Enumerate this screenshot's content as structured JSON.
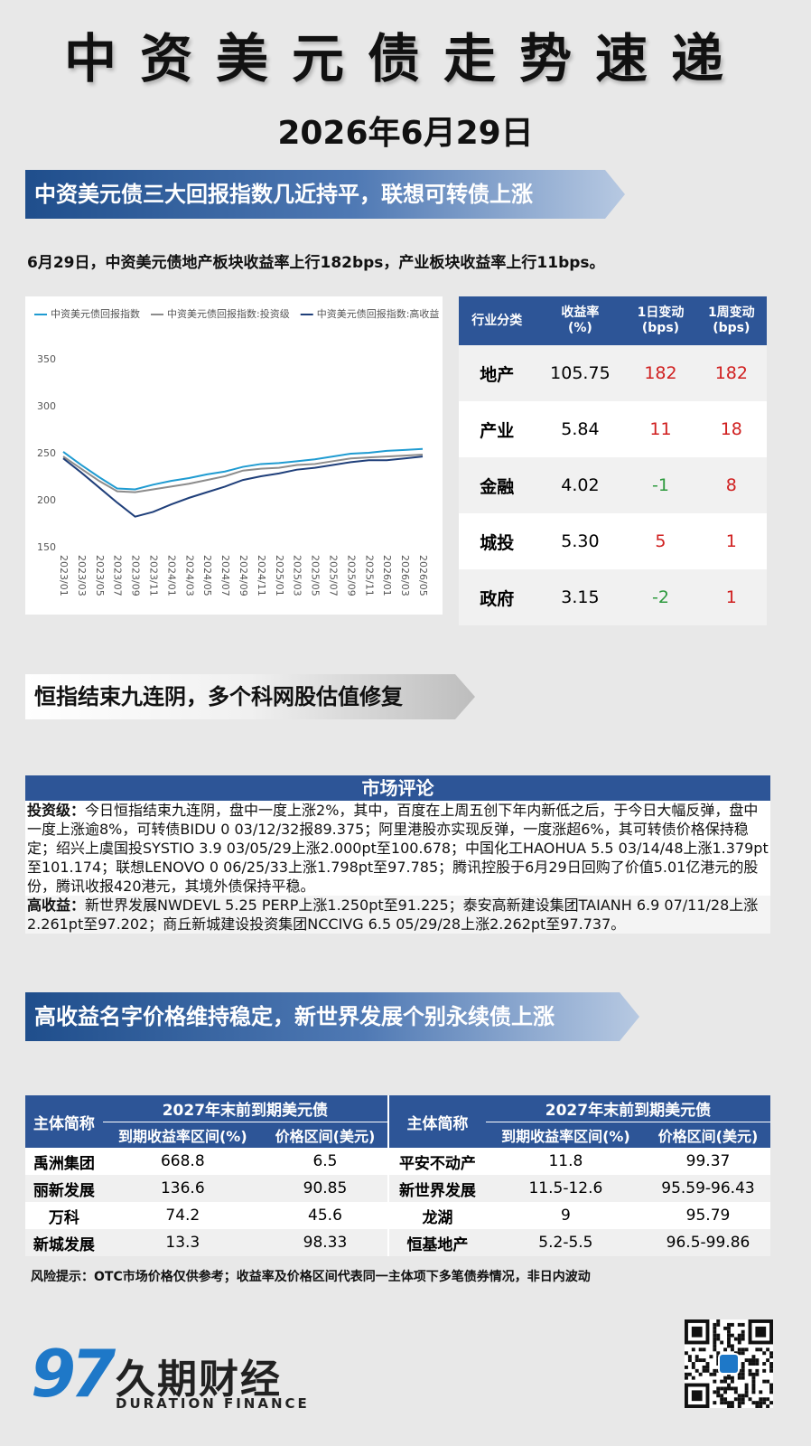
{
  "header": {
    "title": "中资美元债走势速递",
    "date": "2026年6月29日"
  },
  "section1": {
    "heading": "中资美元债三大回报指数几近持平，联想可转债上涨",
    "summary": "6月29日，中资美元债地产板块收益率上行182bps，产业板块收益率上行11bps。",
    "chart": {
      "type": "line",
      "categories": [
        "2023/01",
        "2023/03",
        "2023/05",
        "2023/07",
        "2023/09",
        "2023/11",
        "2024/01",
        "2024/03",
        "2024/05",
        "2024/07",
        "2024/09",
        "2024/11",
        "2025/01",
        "2025/03",
        "2025/05",
        "2025/07",
        "2025/09",
        "2025/11",
        "2026/01",
        "2026/03",
        "2026/05"
      ],
      "series": [
        {
          "name": "中资美元债回报指数",
          "color": "#1f9bd1",
          "values": [
            252,
            238,
            225,
            213,
            212,
            217,
            221,
            224,
            228,
            231,
            236,
            239,
            240,
            242,
            244,
            247,
            250,
            251,
            253,
            254,
            255
          ]
        },
        {
          "name": "中资美元债回报指数:投资级",
          "color": "#8c8c8c",
          "values": [
            247,
            234,
            221,
            210,
            209,
            212,
            215,
            218,
            222,
            226,
            232,
            234,
            235,
            238,
            239,
            242,
            245,
            246,
            247,
            248,
            249
          ]
        },
        {
          "name": "中资美元债回报指数:高收益",
          "color": "#1f3f7a",
          "values": [
            245,
            230,
            214,
            198,
            183,
            188,
            196,
            203,
            209,
            215,
            222,
            226,
            229,
            233,
            235,
            238,
            241,
            243,
            243,
            245,
            247
          ]
        }
      ],
      "ylim": [
        150,
        350
      ],
      "yticks": [
        150,
        200,
        250,
        300,
        350
      ]
    },
    "table": {
      "columns": [
        "行业分类",
        "收益率\n(%)",
        "1日变动\n(bps)",
        "1周变动\n(bps)"
      ],
      "rows": [
        [
          "地产",
          "105.75",
          "182",
          "182"
        ],
        [
          "产业",
          "5.84",
          "11",
          "18"
        ],
        [
          "金融",
          "4.02",
          "-1",
          "8"
        ],
        [
          "城投",
          "5.30",
          "5",
          "1"
        ],
        [
          "政府",
          "3.15",
          "-2",
          "1"
        ]
      ]
    }
  },
  "section2": {
    "heading": "恒指结束九连阴，多个科网股估值修复",
    "commentary": {
      "title": "市场评论",
      "paragraphs": [
        {
          "label": "投资级：",
          "text": "今日恒指结束九连阴，盘中一度上涨2%，其中，百度在上周五创下年内新低之后，于今日大幅反弹，盘中一度上涨逾8%，可转债BIDU 0 03/12/32报89.375；阿里港股亦实现反弹，一度涨超6%，其可转债价格保持稳定；绍兴上虞国投SYSTIO 3.9 03/05/29上涨2.000pt至100.678；中国化工HAOHUA 5.5 03/14/48上涨1.379pt至101.174；联想LENOVO 0 06/25/33上涨1.798pt至97.785；腾讯控股于6月29日回购了价值5.01亿港元的股份，腾讯收报420港元，其境外债保持平稳。"
        },
        {
          "label": "高收益：",
          "text": "新世界发展NWDEVL 5.25 PERP上涨1.250pt至91.225；泰安高新建设集团TAIANH 6.9 07/11/28上涨2.261pt至97.202；商丘新城建设投资集团NCCIVG 6.5 05/29/28上涨2.262pt至97.737。"
        }
      ]
    }
  },
  "section3": {
    "heading": "高收益名字价格维持稳定，新世界发展个别永续债上涨",
    "table": {
      "corner": "主体简称",
      "group": "2027年末前到期美元债",
      "sub": [
        "到期收益率区间(%)",
        "价格区间(美元)"
      ],
      "left": [
        [
          "禹洲集团",
          "668.8",
          "6.5"
        ],
        [
          "丽新发展",
          "136.6",
          "90.85"
        ],
        [
          "万科",
          "74.2",
          "45.6"
        ],
        [
          "新城发展",
          "13.3",
          "98.33"
        ]
      ],
      "right": [
        [
          "平安不动产",
          "11.8",
          "99.37"
        ],
        [
          "新世界发展",
          "11.5-12.6",
          "95.59-96.43"
        ],
        [
          "龙湖",
          "9",
          "95.79"
        ],
        [
          "恒基地产",
          "5.2-5.5",
          "96.5-99.86"
        ]
      ]
    }
  },
  "risk_note": "风险提示：OTC市场价格仅供参考；收益率及价格区间代表同一主体项下多笔债券情况，非日内波动",
  "footer": {
    "logo_mark": "97",
    "brand": "久期财经",
    "brand_en": "DURATION FINANCE"
  }
}
